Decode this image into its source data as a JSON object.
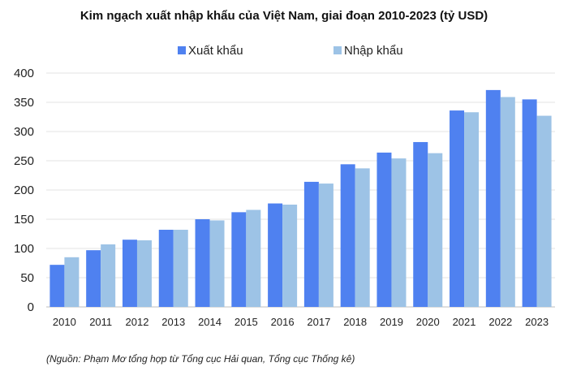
{
  "chart_data": {
    "type": "bar",
    "title": "Kim ngạch xuất nhập khẩu của Việt Nam, giai đoạn 2010-2023 (tỷ USD)",
    "xlabel": "",
    "ylabel": "",
    "categories": [
      "2010",
      "2011",
      "2012",
      "2013",
      "2014",
      "2015",
      "2016",
      "2017",
      "2018",
      "2019",
      "2020",
      "2021",
      "2022",
      "2023"
    ],
    "series": [
      {
        "name": "Xuất khẩu",
        "color": "#4f81f0",
        "values": [
          72,
          97,
          115,
          132,
          150,
          162,
          177,
          214,
          244,
          264,
          282,
          336,
          371,
          355
        ]
      },
      {
        "name": "Nhập khẩu",
        "color": "#9dc3e6",
        "values": [
          85,
          107,
          114,
          132,
          148,
          166,
          175,
          211,
          237,
          254,
          263,
          333,
          359,
          327
        ]
      }
    ],
    "ylim": [
      0,
      400
    ],
    "yticks": [
      0,
      50,
      100,
      150,
      200,
      250,
      300,
      350,
      400
    ],
    "grid": true,
    "legend_position": "top-center"
  },
  "source_note": "(Nguồn: Phạm Mơ tổng hợp từ Tổng cục Hải quan, Tổng cục Thống kê)"
}
